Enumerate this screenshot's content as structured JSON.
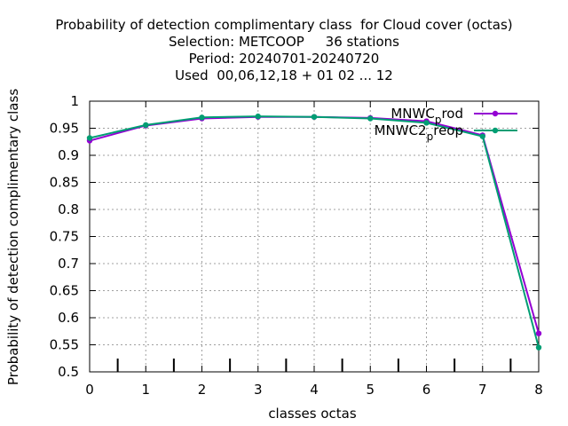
{
  "chart_data": {
    "type": "line",
    "title": [
      "Probability of detection complimentary class  for Cloud cover (octas)",
      "Selection: METCOOP     36 stations",
      "Period: 20240701-20240720",
      "Used  00,06,12,18 + 01 02 ... 12"
    ],
    "xlabel": "classes octas",
    "ylabel": "Probability of detection complimentary class",
    "xlim": [
      0,
      8
    ],
    "ylim": [
      0.5,
      1
    ],
    "xticks": [
      "0",
      "1",
      "2",
      "3",
      "4",
      "5",
      "6",
      "7",
      "8"
    ],
    "yticks": [
      "0.5",
      "0.55",
      "0.6",
      "0.65",
      "0.7",
      "0.75",
      "0.8",
      "0.85",
      "0.9",
      "0.95",
      "1"
    ],
    "grid": true,
    "legend_position": "top-right",
    "x": [
      0,
      1,
      2,
      3,
      4,
      5,
      6,
      7,
      8
    ],
    "series": [
      {
        "name_main": "MNWC",
        "name_sub": "p",
        "name_tail": "rod",
        "color": "#9400d3",
        "values": [
          0.927,
          0.955,
          0.968,
          0.971,
          0.971,
          0.969,
          0.963,
          0.937,
          0.571
        ]
      },
      {
        "name_main": "MNWC2",
        "name_sub": "p",
        "name_tail": "reop",
        "color": "#009e73",
        "values": [
          0.932,
          0.956,
          0.97,
          0.972,
          0.971,
          0.968,
          0.96,
          0.935,
          0.545
        ]
      }
    ]
  }
}
